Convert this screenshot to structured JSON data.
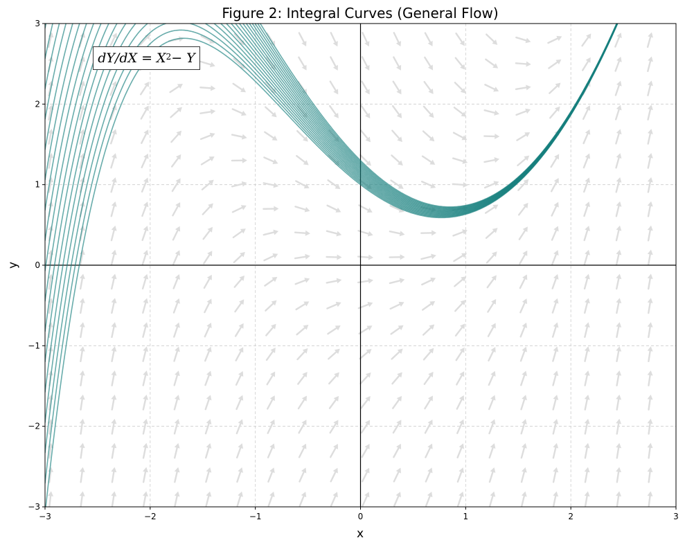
{
  "chart_data": {
    "type": "line",
    "title": "Figure 2: Integral Curves (General Flow)",
    "xlabel": "x",
    "ylabel": "y",
    "xlim": [
      -3,
      3
    ],
    "ylim": [
      -3,
      3
    ],
    "x_ticks": [
      "−3",
      "−2",
      "−1",
      "0",
      "1",
      "2",
      "3"
    ],
    "y_ticks": [
      "−3",
      "−2",
      "−1",
      "0",
      "1",
      "2",
      "3"
    ],
    "grid": true,
    "annotation": {
      "lhs": "dY/dX = X",
      "exponent": "2",
      "rhs": " − Y",
      "location": "top-left"
    },
    "equation": "dY/dX = X^2 - Y",
    "direction_field": {
      "x_range": [
        -3,
        3
      ],
      "y_range": [
        -3,
        3
      ],
      "color": "#dddddd"
    },
    "curves": {
      "color": "#17807e",
      "general_solution": "y = x^2 - 2x + 2 + C*exp(-x)",
      "initial_x": 0,
      "initial_y_values": [
        1.0,
        1.01875,
        1.0375,
        1.05625,
        1.075,
        1.09375,
        1.1125,
        1.13125,
        1.15,
        1.16875,
        1.1875,
        1.20625,
        1.225,
        1.24375,
        1.2625,
        1.28125,
        1.3
      ]
    }
  }
}
